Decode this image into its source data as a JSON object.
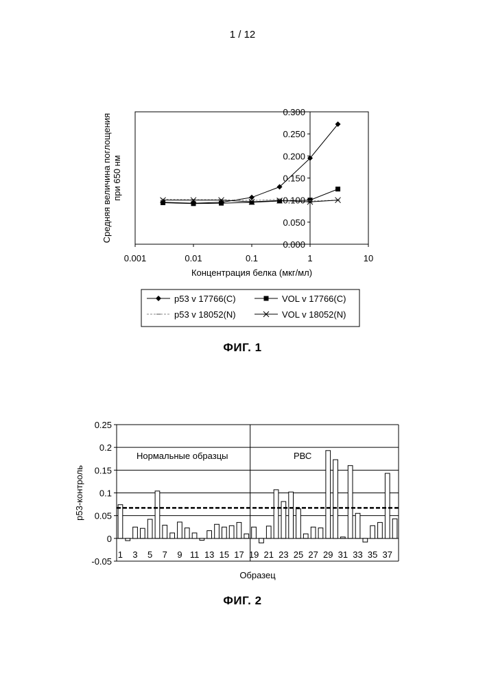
{
  "page_number": "1 / 12",
  "figures": [
    {
      "caption": "ФИГ. 1"
    },
    {
      "caption": "ФИГ. 2"
    }
  ],
  "chart_data": [
    {
      "type": "line",
      "x_scale": "log",
      "xlabel": "Концентрация белка (мкг/мл)",
      "ylabel_lines": [
        "Средняя величина поглощения",
        "при 650 нм"
      ],
      "xlim": [
        0.001,
        10
      ],
      "ylim": [
        0,
        0.3
      ],
      "x_tick_labels": [
        "0.001",
        "0.01",
        "0.1",
        "1",
        "10"
      ],
      "y_tick_labels": [
        "0.000",
        "0.050",
        "0.100",
        "0.150",
        "0.200",
        "0.250",
        "0.300"
      ],
      "x": [
        0.003,
        0.01,
        0.03,
        0.1,
        0.3,
        1,
        3
      ],
      "series": [
        {
          "name": "p53 v 17766(C)",
          "marker": "diamond",
          "color": "#000000",
          "values": [
            0.095,
            0.093,
            0.095,
            0.106,
            0.13,
            0.195,
            0.272
          ]
        },
        {
          "name": "VOL v 17766(C)",
          "marker": "square",
          "color": "#000000",
          "values": [
            0.094,
            0.092,
            0.093,
            0.095,
            0.098,
            0.1,
            0.125
          ]
        },
        {
          "name": "p53 v 18052(N)",
          "marker": "dash",
          "color": "#888888",
          "values": [
            0.102,
            0.101,
            0.101,
            0.099,
            0.102,
            0.098,
            0.1
          ]
        },
        {
          "name": "VOL v 18052(N)",
          "marker": "x",
          "color": "#000000",
          "values": [
            0.1,
            0.1,
            0.1,
            0.096,
            0.099,
            0.096,
            0.1
          ]
        }
      ]
    },
    {
      "type": "bar",
      "xlabel": "Образец",
      "ylabel": "p53-контроль",
      "ylim": [
        -0.05,
        0.25
      ],
      "y_tick_labels": [
        "0.25",
        "0.2",
        "0.15",
        "0.1",
        "0.05",
        "0",
        "-0.05"
      ],
      "x_tick_labels": [
        "1",
        "3",
        "5",
        "7",
        "9",
        "11",
        "13",
        "15",
        "17",
        "19",
        "21",
        "23",
        "25",
        "27",
        "29",
        "31",
        "33",
        "35",
        "37"
      ],
      "categories": [
        1,
        2,
        3,
        4,
        5,
        6,
        7,
        8,
        9,
        10,
        11,
        12,
        13,
        14,
        15,
        16,
        17,
        18,
        19,
        20,
        21,
        22,
        23,
        24,
        25,
        26,
        27,
        28,
        29,
        30,
        31,
        32,
        33,
        34,
        35,
        36,
        37,
        38
      ],
      "values": [
        0.074,
        -0.005,
        0.025,
        0.022,
        0.042,
        0.104,
        0.029,
        0.012,
        0.036,
        0.023,
        0.012,
        -0.004,
        0.017,
        0.031,
        0.025,
        0.028,
        0.035,
        0.01,
        0.025,
        -0.01,
        0.027,
        0.107,
        0.081,
        0.102,
        0.065,
        0.01,
        0.025,
        0.023,
        0.193,
        0.173,
        0.003,
        0.16,
        0.055,
        -0.008,
        0.028,
        0.035,
        0.143,
        0.043
      ],
      "threshold": 0.067,
      "divider_after_category": 18,
      "group_labels": [
        "Нормальные образцы",
        "РВС"
      ]
    }
  ]
}
